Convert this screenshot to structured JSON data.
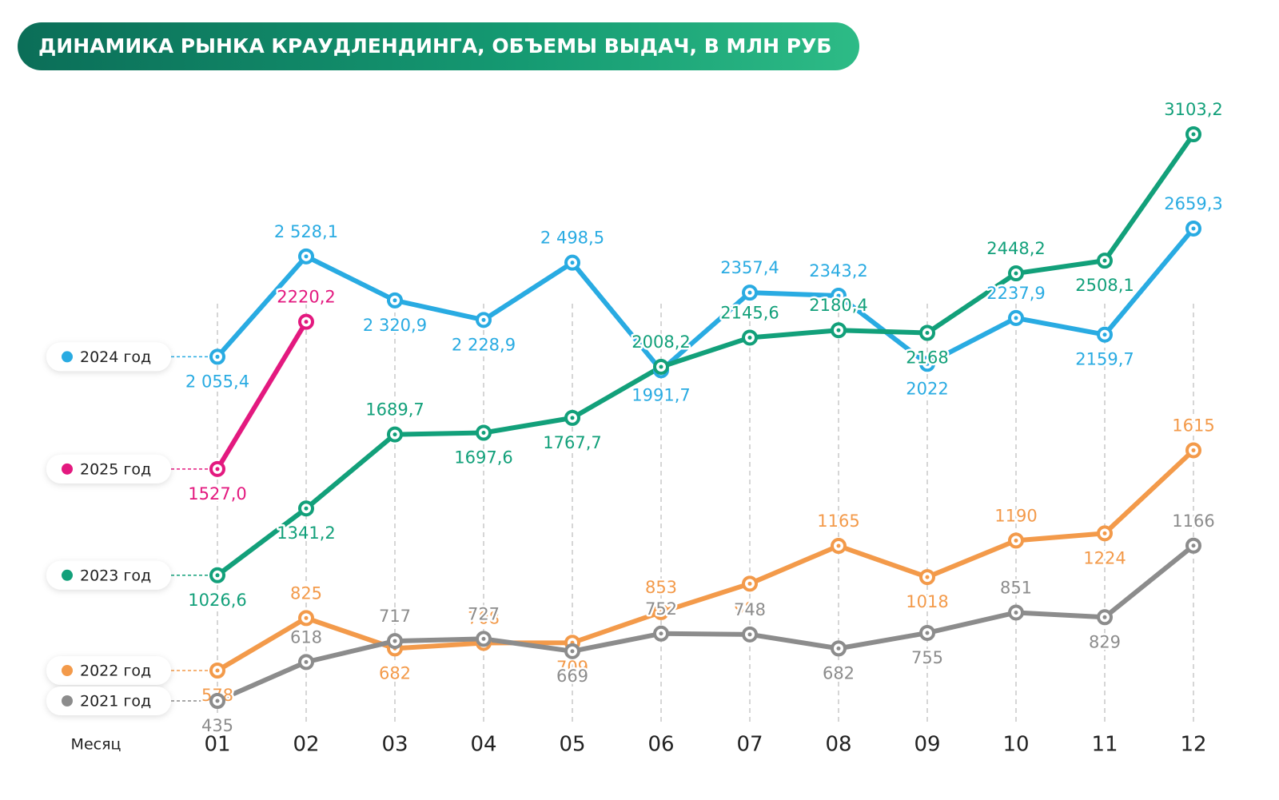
{
  "chart_data": {
    "type": "line",
    "title": "ДИНАМИКА РЫНКА КРАУДЛЕНДИНГА, ОБЪЕМЫ ВЫДАЧ, В МЛН РУБ",
    "x_label": "Месяц",
    "categories": [
      "01",
      "02",
      "03",
      "04",
      "05",
      "06",
      "07",
      "08",
      "09",
      "10",
      "11",
      "12"
    ],
    "series": [
      {
        "name": "2024 год",
        "color": "#29abe2",
        "values": [
          2055.4,
          2528.1,
          2320.9,
          2228.9,
          2498.5,
          1991.7,
          2357.4,
          2343.2,
          2022,
          2237.9,
          2159.7,
          2659.3
        ],
        "value_labels": [
          "2 055,4",
          "2 528,1",
          "2 320,9",
          "2 228,9",
          "2 498,5",
          "1991,7",
          "2357,4",
          "2343,2",
          "2022",
          "2237,9",
          "2159,7",
          "2659,3"
        ]
      },
      {
        "name": "2025 год",
        "color": "#e3197f",
        "values": [
          1527.0,
          2220.2,
          null,
          null,
          null,
          null,
          null,
          null,
          null,
          null,
          null,
          null
        ],
        "value_labels": [
          "1527,0",
          "2220,2",
          null,
          null,
          null,
          null,
          null,
          null,
          null,
          null,
          null,
          null
        ]
      },
      {
        "name": "2023 год",
        "color": "#12a07a",
        "values": [
          1026.6,
          1341.2,
          1689.7,
          1697.6,
          1767.7,
          2008.2,
          2145.6,
          2180.4,
          2168,
          2448.2,
          2508.1,
          3103.2
        ],
        "value_labels": [
          "1026,6",
          "1341,2",
          "1689,7",
          "1697,6",
          "1767,7",
          "2008,2",
          "2145,6",
          "2180,4",
          "2168",
          "2448,2",
          "2508,1",
          "3103,2"
        ]
      },
      {
        "name": "2022 год",
        "color": "#f39a4a",
        "values": [
          578,
          825,
          682,
          708,
          709,
          853,
          987,
          1165,
          1018,
          1190,
          1224,
          1615
        ]
      },
      {
        "name": "2021 год",
        "color": "#8c8c8c",
        "values": [
          435,
          618,
          717,
          727,
          669,
          752,
          748,
          682,
          755,
          851,
          829,
          1166
        ]
      }
    ]
  }
}
